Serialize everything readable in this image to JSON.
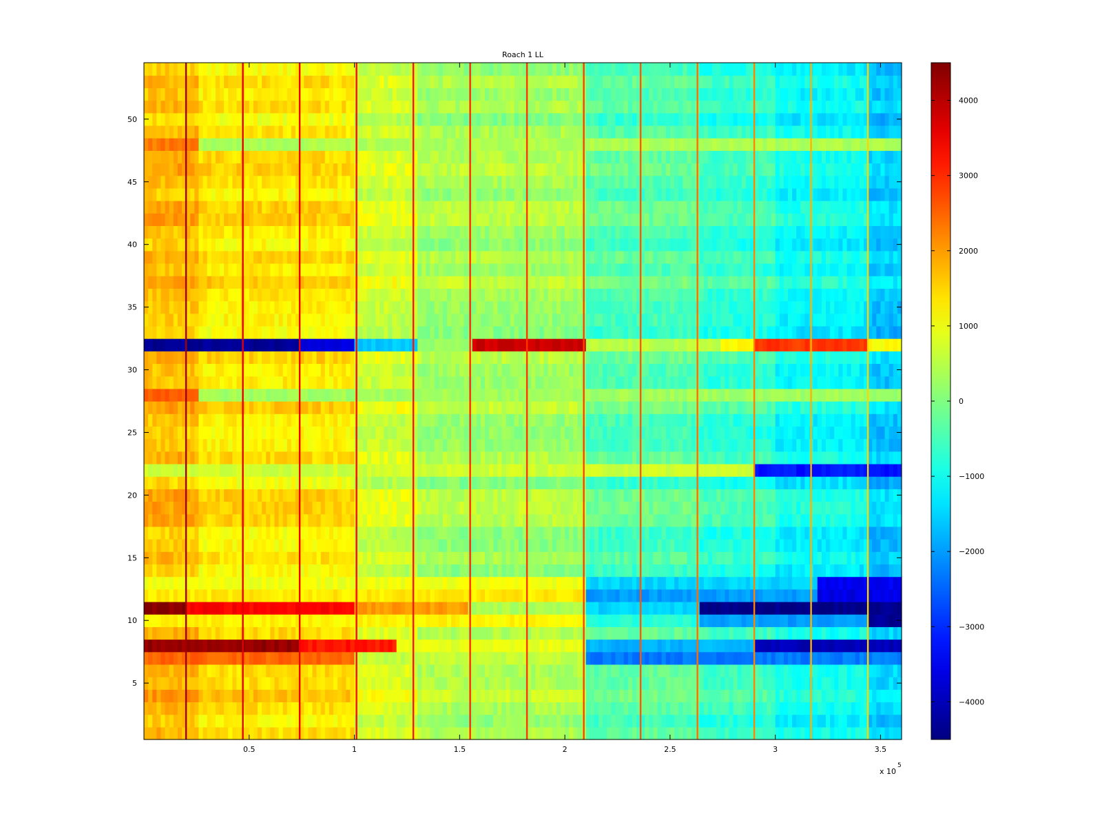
{
  "chart_data": {
    "type": "heatmap",
    "title": "Roach 1 LL",
    "xlabel": "",
    "ylabel": "",
    "x_range": [
      0,
      360000
    ],
    "y_range": [
      0.5,
      54.5
    ],
    "x_multiplier": "x 10",
    "x_multiplier_exponent": "5",
    "x_ticks": [
      {
        "value": 50000,
        "label": "0.5"
      },
      {
        "value": 100000,
        "label": "1"
      },
      {
        "value": 150000,
        "label": "1.5"
      },
      {
        "value": 200000,
        "label": "2"
      },
      {
        "value": 250000,
        "label": "2.5"
      },
      {
        "value": 300000,
        "label": "3"
      },
      {
        "value": 350000,
        "label": "3.5"
      }
    ],
    "y_ticks": [
      {
        "value": 5,
        "label": "5"
      },
      {
        "value": 10,
        "label": "10"
      },
      {
        "value": 15,
        "label": "15"
      },
      {
        "value": 20,
        "label": "20"
      },
      {
        "value": 25,
        "label": "25"
      },
      {
        "value": 30,
        "label": "30"
      },
      {
        "value": 35,
        "label": "35"
      },
      {
        "value": 40,
        "label": "40"
      },
      {
        "value": 45,
        "label": "45"
      },
      {
        "value": 50,
        "label": "50"
      }
    ],
    "rows": 54,
    "colormap": "jet",
    "clim": [
      -4500,
      4500
    ],
    "colorbar_ticks": [
      {
        "value": 4000,
        "label": "4000"
      },
      {
        "value": 3000,
        "label": "3000"
      },
      {
        "value": 2000,
        "label": "2000"
      },
      {
        "value": 1000,
        "label": "1000"
      },
      {
        "value": 0,
        "label": "0"
      },
      {
        "value": -1000,
        "label": "−1000"
      },
      {
        "value": -2000,
        "label": "−2000"
      },
      {
        "value": -3000,
        "label": "−3000"
      },
      {
        "value": -4000,
        "label": "−4000"
      }
    ],
    "column_segments": [
      {
        "x_start": 0,
        "x_end": 27000,
        "typical_value": 1700
      },
      {
        "x_start": 27000,
        "x_end": 100000,
        "typical_value": 1300
      },
      {
        "x_start": 100000,
        "x_end": 130000,
        "typical_value": 700
      },
      {
        "x_start": 130000,
        "x_end": 210000,
        "typical_value": 300
      },
      {
        "x_start": 210000,
        "x_end": 265000,
        "typical_value": -400
      },
      {
        "x_start": 265000,
        "x_end": 300000,
        "typical_value": -700
      },
      {
        "x_start": 300000,
        "x_end": 345000,
        "typical_value": -1100
      },
      {
        "x_start": 345000,
        "x_end": 360000,
        "typical_value": -1600
      }
    ],
    "vertical_stripes": [
      {
        "x": 20000,
        "value": 4200
      },
      {
        "x": 47000,
        "value": 3600
      },
      {
        "x": 74000,
        "value": 3500
      },
      {
        "x": 101000,
        "value": 3300
      },
      {
        "x": 128000,
        "value": 3200
      },
      {
        "x": 155000,
        "value": 3000
      },
      {
        "x": 182000,
        "value": 2900
      },
      {
        "x": 209000,
        "value": 2800
      },
      {
        "x": 236000,
        "value": 2600
      },
      {
        "x": 263000,
        "value": 2400
      },
      {
        "x": 290000,
        "value": 2200
      },
      {
        "x": 317000,
        "value": 1800
      },
      {
        "x": 344000,
        "value": 1500
      }
    ],
    "row_highlights": [
      {
        "row": 32,
        "segments": [
          {
            "x_start": 0,
            "x_end": 75000,
            "value": -4300
          },
          {
            "x_start": 75000,
            "x_end": 100000,
            "value": -3600
          },
          {
            "x_start": 100000,
            "x_end": 130000,
            "value": -1600
          },
          {
            "x_start": 130000,
            "x_end": 157000,
            "value": 200
          },
          {
            "x_start": 157000,
            "x_end": 210000,
            "value": 3800
          },
          {
            "x_start": 210000,
            "x_end": 275000,
            "value": 500
          },
          {
            "x_start": 275000,
            "x_end": 290000,
            "value": 1200
          },
          {
            "x_start": 290000,
            "x_end": 345000,
            "value": 2900
          },
          {
            "x_start": 345000,
            "x_end": 360000,
            "value": 1100
          }
        ]
      },
      {
        "row": 11,
        "segments": [
          {
            "x_start": 0,
            "x_end": 20000,
            "value": 4400
          },
          {
            "x_start": 20000,
            "x_end": 100000,
            "value": 3400
          },
          {
            "x_start": 100000,
            "x_end": 155000,
            "value": 2000
          },
          {
            "x_start": 155000,
            "x_end": 210000,
            "value": 400
          },
          {
            "x_start": 210000,
            "x_end": 265000,
            "value": -1500
          },
          {
            "x_start": 265000,
            "x_end": 360000,
            "value": -4400
          }
        ]
      },
      {
        "row": 8,
        "segments": [
          {
            "x_start": 0,
            "x_end": 75000,
            "value": 4300
          },
          {
            "x_start": 75000,
            "x_end": 120000,
            "value": 3200
          },
          {
            "x_start": 120000,
            "x_end": 210000,
            "value": 900
          },
          {
            "x_start": 210000,
            "x_end": 290000,
            "value": -1800
          },
          {
            "x_start": 290000,
            "x_end": 360000,
            "value": -4000
          }
        ]
      },
      {
        "row": 10,
        "segments": [
          {
            "x_start": 0,
            "x_end": 210000,
            "value": 1200
          },
          {
            "x_start": 210000,
            "x_end": 265000,
            "value": -800
          },
          {
            "x_start": 265000,
            "x_end": 345000,
            "value": -2000
          },
          {
            "x_start": 345000,
            "x_end": 360000,
            "value": -4300
          }
        ]
      },
      {
        "row": 12,
        "segments": [
          {
            "x_start": 0,
            "x_end": 210000,
            "value": 1300
          },
          {
            "x_start": 210000,
            "x_end": 320000,
            "value": -2000
          },
          {
            "x_start": 320000,
            "x_end": 360000,
            "value": -3600
          }
        ]
      },
      {
        "row": 13,
        "segments": [
          {
            "x_start": 0,
            "x_end": 210000,
            "value": 1000
          },
          {
            "x_start": 210000,
            "x_end": 320000,
            "value": -1500
          },
          {
            "x_start": 320000,
            "x_end": 360000,
            "value": -3500
          }
        ]
      },
      {
        "row": 7,
        "segments": [
          {
            "x_start": 0,
            "x_end": 100000,
            "value": 2500
          },
          {
            "x_start": 100000,
            "x_end": 210000,
            "value": 600
          },
          {
            "x_start": 210000,
            "x_end": 360000,
            "value": -2300
          }
        ]
      },
      {
        "row": 22,
        "segments": [
          {
            "x_start": 0,
            "x_end": 290000,
            "value": 700
          },
          {
            "x_start": 290000,
            "x_end": 360000,
            "value": -3200
          }
        ]
      },
      {
        "row": 28,
        "segments": [
          {
            "x_start": 0,
            "x_end": 27000,
            "value": 2600
          },
          {
            "x_start": 27000,
            "x_end": 360000,
            "value": 300
          }
        ]
      },
      {
        "row": 48,
        "segments": [
          {
            "x_start": 0,
            "x_end": 27000,
            "value": 2300
          },
          {
            "x_start": 27000,
            "x_end": 360000,
            "value": 400
          }
        ]
      }
    ]
  }
}
